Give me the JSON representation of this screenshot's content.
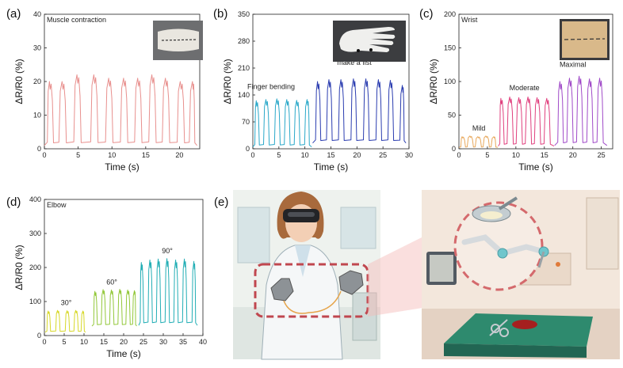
{
  "colors": {
    "muscle": "#e8908e",
    "finger": "#2aa8c9",
    "fist": "#2b3db0",
    "wrist_mild": "#e8a85c",
    "wrist_moderate": "#e0407e",
    "wrist_maximal": "#a04ac8",
    "elbow_30": "#d7d829",
    "elbow_60": "#93c83a",
    "elbow_90": "#22aeb5"
  },
  "photo_icons": [
    "muscle-contraction-photo",
    "glove-photo",
    "wrist-sensor-photo"
  ],
  "illustration": {
    "label": "(e)",
    "scenes": [
      "vr-headset-doctor-with-sensor-gloves",
      "robotic-surgery-room"
    ],
    "icons": [
      "doctor-icon",
      "vr-headset-icon",
      "glove-icon",
      "robot-arm-icon",
      "surgical-lamp-icon",
      "operating-table-icon",
      "monitor-icon"
    ]
  },
  "chart_data": [
    {
      "panel": "(a)",
      "type": "line",
      "title": "Muscle contraction",
      "xlabel": "Time (s)",
      "ylabel": "ΔR/R0 (%)",
      "xlim": [
        0,
        23
      ],
      "ylim": [
        0,
        40
      ],
      "xticks": [
        0,
        5,
        10,
        15,
        20
      ],
      "yticks": [
        0,
        10,
        20,
        30,
        40
      ],
      "annotations": [],
      "series": [
        {
          "color_key": "muscle",
          "baseline": 1,
          "x_start": 0,
          "x_end": 22.6,
          "cycles": [
            {
              "t": 0.8,
              "peak": 20
            },
            {
              "t": 2.7,
              "peak": 20
            },
            {
              "t": 4.9,
              "peak": 22
            },
            {
              "t": 7.4,
              "peak": 22
            },
            {
              "t": 9.6,
              "peak": 21
            },
            {
              "t": 11.8,
              "peak": 21
            },
            {
              "t": 13.9,
              "peak": 21
            },
            {
              "t": 16.0,
              "peak": 22
            },
            {
              "t": 18.0,
              "peak": 21
            },
            {
              "t": 20.2,
              "peak": 20
            },
            {
              "t": 22.0,
              "peak": 20
            }
          ]
        }
      ]
    },
    {
      "panel": "(b)",
      "type": "line",
      "title": "",
      "xlabel": "Time (s)",
      "ylabel": "ΔR/R0 (%)",
      "xlim": [
        0,
        30
      ],
      "ylim": [
        0,
        350
      ],
      "xticks": [
        0,
        5,
        10,
        15,
        20,
        25,
        30
      ],
      "yticks": [
        0,
        70,
        140,
        210,
        280,
        350
      ],
      "annotations": [
        {
          "text": "Finger bending",
          "x": 3.5,
          "y": 155
        },
        {
          "text": "make a fist",
          "x": 19.5,
          "y": 218
        }
      ],
      "series": [
        {
          "name": "Finger bending",
          "color_key": "finger",
          "baseline": 5,
          "x_start": 0,
          "x_end": 11.3,
          "cycles": [
            {
              "t": 0.7,
              "peak": 125
            },
            {
              "t": 2.6,
              "peak": 128
            },
            {
              "t": 4.7,
              "peak": 130
            },
            {
              "t": 6.6,
              "peak": 128
            },
            {
              "t": 8.5,
              "peak": 126
            },
            {
              "t": 10.5,
              "peak": 128
            }
          ]
        },
        {
          "name": "make a fist",
          "color_key": "fist",
          "baseline": 15,
          "x_start": 11.5,
          "x_end": 29.4,
          "cycles": [
            {
              "t": 12.5,
              "peak": 175
            },
            {
              "t": 14.7,
              "peak": 180
            },
            {
              "t": 17.0,
              "peak": 180
            },
            {
              "t": 19.4,
              "peak": 182
            },
            {
              "t": 21.8,
              "peak": 182
            },
            {
              "t": 24.2,
              "peak": 180
            },
            {
              "t": 26.5,
              "peak": 178
            },
            {
              "t": 28.8,
              "peak": 165
            }
          ]
        }
      ]
    },
    {
      "panel": "(c)",
      "type": "line",
      "title": "Wrist",
      "xlabel": "Time (s)",
      "ylabel": "ΔR/R0 (%)",
      "xlim": [
        0,
        27
      ],
      "ylim": [
        0,
        200
      ],
      "xticks": [
        0,
        5,
        10,
        15,
        20,
        25
      ],
      "yticks": [
        0,
        50,
        100,
        150,
        200
      ],
      "annotations": [
        {
          "text": "Mild",
          "x": 3.5,
          "y": 27
        },
        {
          "text": "Moderate",
          "x": 11.5,
          "y": 87
        },
        {
          "text": "Maximal",
          "x": 20.0,
          "y": 122
        }
      ],
      "series": [
        {
          "name": "Mild",
          "color_key": "wrist_mild",
          "baseline": 2,
          "x_start": 0,
          "x_end": 6.8,
          "cycles": [
            {
              "t": 0.6,
              "peak": 18
            },
            {
              "t": 2.0,
              "peak": 19
            },
            {
              "t": 3.4,
              "peak": 18
            },
            {
              "t": 4.8,
              "peak": 19
            },
            {
              "t": 6.2,
              "peak": 18
            }
          ]
        },
        {
          "name": "Moderate",
          "color_key": "wrist_moderate",
          "baseline": 4,
          "x_start": 6.9,
          "x_end": 16.7,
          "cycles": [
            {
              "t": 7.4,
              "peak": 75
            },
            {
              "t": 9.0,
              "peak": 77
            },
            {
              "t": 10.6,
              "peak": 76
            },
            {
              "t": 12.2,
              "peak": 77
            },
            {
              "t": 13.8,
              "peak": 76
            },
            {
              "t": 15.5,
              "peak": 75
            }
          ]
        },
        {
          "name": "Maximal",
          "color_key": "wrist_maximal",
          "baseline": 5,
          "x_start": 16.8,
          "x_end": 26.0,
          "cycles": [
            {
              "t": 17.8,
              "peak": 100
            },
            {
              "t": 19.5,
              "peak": 105
            },
            {
              "t": 21.2,
              "peak": 108
            },
            {
              "t": 23.0,
              "peak": 104
            },
            {
              "t": 24.8,
              "peak": 105
            }
          ]
        }
      ]
    },
    {
      "panel": "(d)",
      "type": "line",
      "title": "Elbow",
      "xlabel": "Time (s)",
      "ylabel": "ΔR/R0 (%)",
      "xlim": [
        0,
        40
      ],
      "ylim": [
        0,
        400
      ],
      "xticks": [
        0,
        5,
        10,
        15,
        20,
        25,
        30,
        35,
        40
      ],
      "yticks": [
        0,
        100,
        200,
        300,
        400
      ],
      "annotations": [
        {
          "text": "30°",
          "x": 5.5,
          "y": 90
        },
        {
          "text": "60°",
          "x": 17.0,
          "y": 150
        },
        {
          "text": "90°",
          "x": 31.0,
          "y": 242
        }
      ],
      "series": [
        {
          "name": "30°",
          "color_key": "elbow_30",
          "baseline": 10,
          "x_start": 0.2,
          "x_end": 10.4,
          "cycles": [
            {
              "t": 1.0,
              "peak": 72
            },
            {
              "t": 3.4,
              "peak": 74
            },
            {
              "t": 5.8,
              "peak": 73
            },
            {
              "t": 8.0,
              "peak": 74
            },
            {
              "t": 9.8,
              "peak": 72
            }
          ]
        },
        {
          "name": "60°",
          "color_key": "elbow_60",
          "baseline": 28,
          "x_start": 12.0,
          "x_end": 23.3,
          "cycles": [
            {
              "t": 12.8,
              "peak": 130
            },
            {
              "t": 14.9,
              "peak": 135
            },
            {
              "t": 17.0,
              "peak": 134
            },
            {
              "t": 19.1,
              "peak": 136
            },
            {
              "t": 21.1,
              "peak": 134
            },
            {
              "t": 22.8,
              "peak": 132
            }
          ]
        },
        {
          "name": "90°",
          "color_key": "elbow_90",
          "baseline": 30,
          "x_start": 23.8,
          "x_end": 38.6,
          "cycles": [
            {
              "t": 24.5,
              "peak": 215
            },
            {
              "t": 26.7,
              "peak": 222
            },
            {
              "t": 28.8,
              "peak": 225
            },
            {
              "t": 31.0,
              "peak": 226
            },
            {
              "t": 33.2,
              "peak": 222
            },
            {
              "t": 35.4,
              "peak": 225
            },
            {
              "t": 37.8,
              "peak": 218
            }
          ]
        }
      ]
    }
  ]
}
